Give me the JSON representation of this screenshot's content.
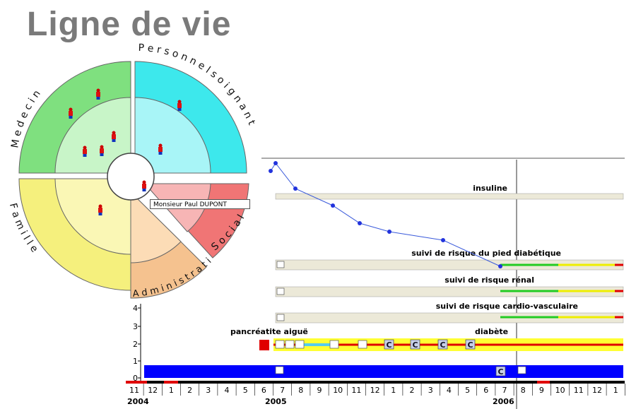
{
  "title": "Ligne de vie",
  "wheel": {
    "sectors": [
      {
        "name": "Medecin",
        "label": "M e d e c i n",
        "outer": "#7fe07f",
        "inner": "#c8f5c8"
      },
      {
        "name": "Personnel soignant",
        "label": "P e r s o n n e l   s o i g n a n t",
        "outer": "#3de8ec",
        "inner": "#a8f5f7"
      },
      {
        "name": "Social",
        "label": "S o c i a l",
        "outer": "#f07575",
        "inner": "#f7b5b5"
      },
      {
        "name": "Administration",
        "label": "A d m i n i s t r a t i o n",
        "outer": "#f5c28f",
        "inner": "#fcdcb6"
      },
      {
        "name": "Famille",
        "label": "F a m i l l e",
        "outer": "#f5f07d",
        "inner": "#faf7b5"
      }
    ],
    "patient": "Monsieur Paul DUPONT"
  },
  "timeline": {
    "tracks": [
      {
        "label": "insuline"
      },
      {
        "label": "suivi de risque du pied diabétique"
      },
      {
        "label": "suivi de risque rénal"
      },
      {
        "label": "suivi de risque cardio-vasculaire"
      }
    ],
    "pathology_labels": {
      "left": "pancréatite aiguë",
      "right": "diabète"
    },
    "event_letter": "C",
    "y_axis": [
      "0",
      "1",
      "2",
      "3",
      "4"
    ],
    "months": [
      "11",
      "12",
      "1",
      "2",
      "3",
      "4",
      "5",
      "6",
      "7",
      "8",
      "9",
      "10",
      "11",
      "12",
      "1",
      "2",
      "3",
      "4",
      "5",
      "6",
      "7",
      "8",
      "9",
      "10",
      "11",
      "12",
      "1"
    ],
    "years": [
      "2004",
      "2005",
      "2006"
    ],
    "colors": {
      "blue_band": "#0000ff",
      "yellow_band": "#ffff33",
      "red": "#e00000",
      "green": "#22cc22",
      "track": "#ece9d8",
      "line": "#3b5bdb"
    }
  }
}
